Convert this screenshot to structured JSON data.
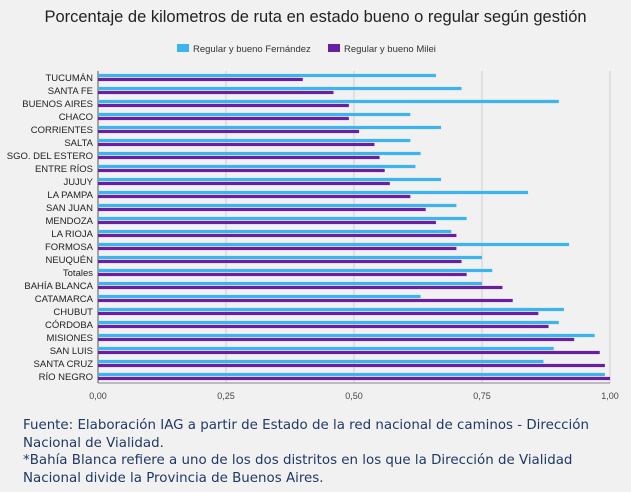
{
  "chart_data": {
    "type": "bar",
    "orientation": "horizontal",
    "title": "Porcentaje de kilometros de ruta en estado bueno o regular según gestión",
    "xlabel": "",
    "ylabel": "",
    "xlim": [
      0,
      1
    ],
    "x_ticks": [
      "0,00",
      "0,25",
      "0,50",
      "0,75",
      "1,00"
    ],
    "grid": "vertical",
    "legend_position": "top-center",
    "categories": [
      "TUCUMÁN",
      "SANTA FE",
      "BUENOS AIRES",
      "CHACO",
      "CORRIENTES",
      "SALTA",
      "SGO. DEL ESTERO",
      "ENTRE RÍOS",
      "JUJUY",
      "LA PAMPA",
      "SAN JUAN",
      "MENDOZA",
      "LA RIOJA",
      "FORMOSA",
      "NEUQUÉN",
      "Totales",
      "BAHÍA BLANCA",
      "CATAMARCA",
      "CHUBUT",
      "CÓRDOBA",
      "MISIONES",
      "SAN LUIS",
      "SANTA CRUZ",
      "RÍO NEGRO"
    ],
    "series": [
      {
        "name": "Regular y bueno Fernández",
        "color": "#3cb4f0",
        "values": [
          0.66,
          0.71,
          0.9,
          0.61,
          0.67,
          0.61,
          0.63,
          0.62,
          0.67,
          0.84,
          0.7,
          0.72,
          0.69,
          0.92,
          0.75,
          0.77,
          0.75,
          0.63,
          0.91,
          0.9,
          0.97,
          0.89,
          0.87,
          0.99
        ]
      },
      {
        "name": "Regular y bueno Milei",
        "color": "#6a1fa3",
        "values": [
          0.4,
          0.46,
          0.49,
          0.49,
          0.51,
          0.54,
          0.55,
          0.56,
          0.57,
          0.61,
          0.64,
          0.66,
          0.7,
          0.7,
          0.71,
          0.72,
          0.79,
          0.81,
          0.86,
          0.88,
          0.93,
          0.98,
          0.99,
          1.0
        ]
      }
    ]
  },
  "caption": {
    "line1": "Fuente: Elaboración IAG a partir de Estado de la red nacional de caminos - Dirección Nacional de Vialidad.",
    "line2": "*Bahía Blanca refiere a uno de los dos distritos en los que la Dirección de Vialidad Nacional divide la Provincia de Buenos Aires."
  }
}
